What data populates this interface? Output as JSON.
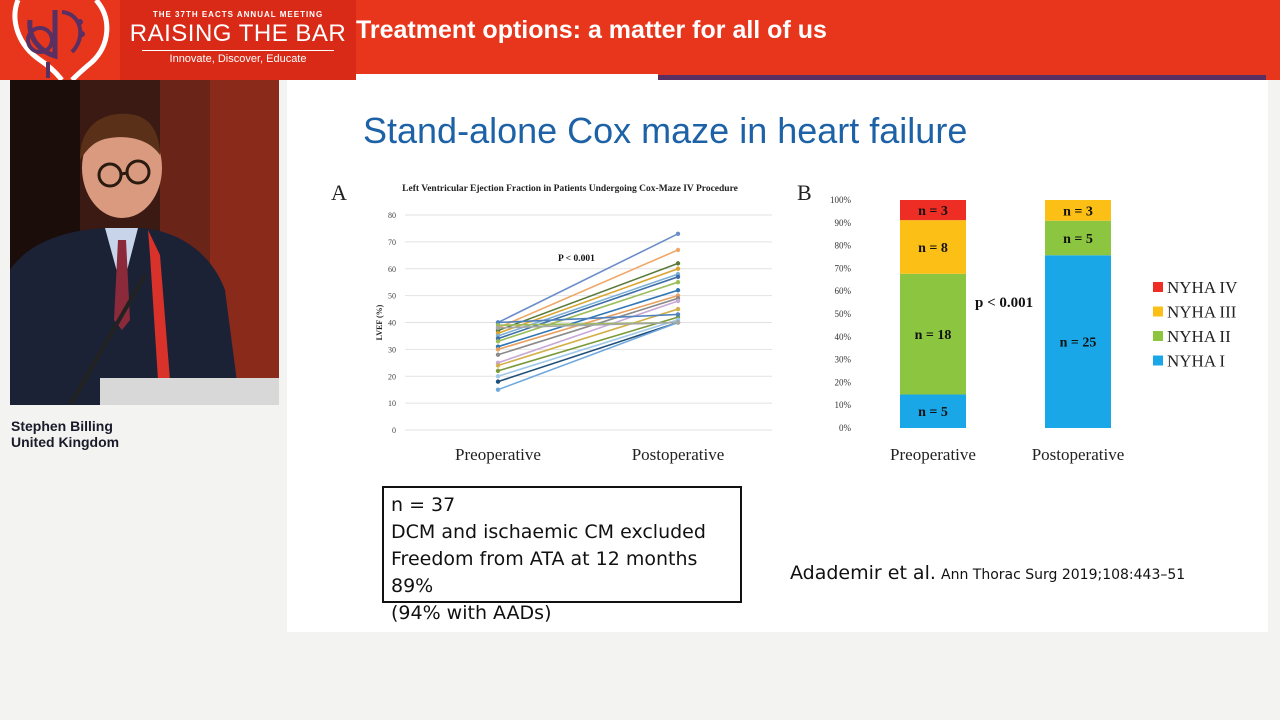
{
  "header": {
    "event_subtitle": "THE 37TH EACTS ANNUAL MEETING",
    "event_title": "RAISING THE BAR",
    "event_tagline": "Innovate, Discover, Educate",
    "session_title": "Treatment options: a matter for all of us",
    "colors": {
      "banner": "#e8361d",
      "accent_strip": "#5a2f62"
    }
  },
  "speaker": {
    "name": "Stephen Billing",
    "country": "United Kingdom"
  },
  "slide": {
    "title": "Stand-alone Cox maze in heart failure",
    "panel_a_letter": "A",
    "panel_b_letter": "B",
    "info_box": {
      "line1": "n = 37",
      "line2": "DCM and ischaemic CM excluded",
      "line3": "Freedom from ATA at 12 months 89%",
      "line4": "(94% with AADs)"
    },
    "citation": {
      "authors": "Adademir et al.",
      "journal": "Ann Thorac Surg 2019;108:443–51"
    }
  },
  "chart_data": [
    {
      "type": "line",
      "title": "Left Ventricular Ejection Fraction in Patients Undergoing Cox-Maze IV Procedure",
      "ylabel": "LVEF (%)",
      "xlabel": "",
      "categories": [
        "Preoperative",
        "Postoperative"
      ],
      "ylim": [
        0,
        80
      ],
      "yticks": [
        0,
        10,
        20,
        30,
        40,
        50,
        60,
        70,
        80
      ],
      "annotation": "P < 0.001",
      "grid": true,
      "series": [
        {
          "values": [
            40,
            73
          ],
          "color": "#6b8ec9"
        },
        {
          "values": [
            38,
            67
          ],
          "color": "#f0a868"
        },
        {
          "values": [
            37,
            62
          ],
          "color": "#5a7a3a"
        },
        {
          "values": [
            36,
            60
          ],
          "color": "#d9a530"
        },
        {
          "values": [
            35,
            58
          ],
          "color": "#7fb0d6"
        },
        {
          "values": [
            34,
            57
          ],
          "color": "#3c6ea8"
        },
        {
          "values": [
            33,
            55
          ],
          "color": "#9bbd5a"
        },
        {
          "values": [
            31,
            52
          ],
          "color": "#2e75b6"
        },
        {
          "values": [
            30,
            50
          ],
          "color": "#e8a060"
        },
        {
          "values": [
            28,
            49
          ],
          "color": "#8a8a8a"
        },
        {
          "values": [
            25,
            48
          ],
          "color": "#c8a8d8"
        },
        {
          "values": [
            24,
            45
          ],
          "color": "#d4b04a"
        },
        {
          "values": [
            22,
            42
          ],
          "color": "#7a9a3a"
        },
        {
          "values": [
            20,
            41
          ],
          "color": "#a0c8e8"
        },
        {
          "values": [
            18,
            40
          ],
          "color": "#1f4e79"
        },
        {
          "values": [
            15,
            40
          ],
          "color": "#6fa8dc"
        },
        {
          "values": [
            40,
            43
          ],
          "color": "#4f81bd"
        },
        {
          "values": [
            39,
            40
          ],
          "color": "#9bbb59"
        },
        {
          "values": [
            38,
            40
          ],
          "color": "#a6a6a6"
        }
      ]
    },
    {
      "type": "bar",
      "stacked": true,
      "categories": [
        "Preoperative",
        "Postoperative"
      ],
      "ylim": [
        0,
        100
      ],
      "yticks": [
        "0%",
        "10%",
        "20%",
        "30%",
        "40%",
        "50%",
        "60%",
        "70%",
        "80%",
        "90%",
        "100%"
      ],
      "annotation": "p < 0.001",
      "legend_position": "right",
      "series": [
        {
          "name": "NYHA I",
          "values": [
            5,
            25
          ],
          "labels": [
            "n = 5",
            "n = 25"
          ],
          "color": "#1aa7e8"
        },
        {
          "name": "NYHA II",
          "values": [
            18,
            5
          ],
          "labels": [
            "n = 18",
            "n = 5"
          ],
          "color": "#8cc540"
        },
        {
          "name": "NYHA III",
          "values": [
            8,
            3
          ],
          "labels": [
            "n = 8",
            "n = 3"
          ],
          "color": "#fbbf16"
        },
        {
          "name": "NYHA IV",
          "values": [
            3,
            0
          ],
          "labels": [
            "n = 3",
            ""
          ],
          "color": "#ee2e24"
        }
      ]
    }
  ]
}
